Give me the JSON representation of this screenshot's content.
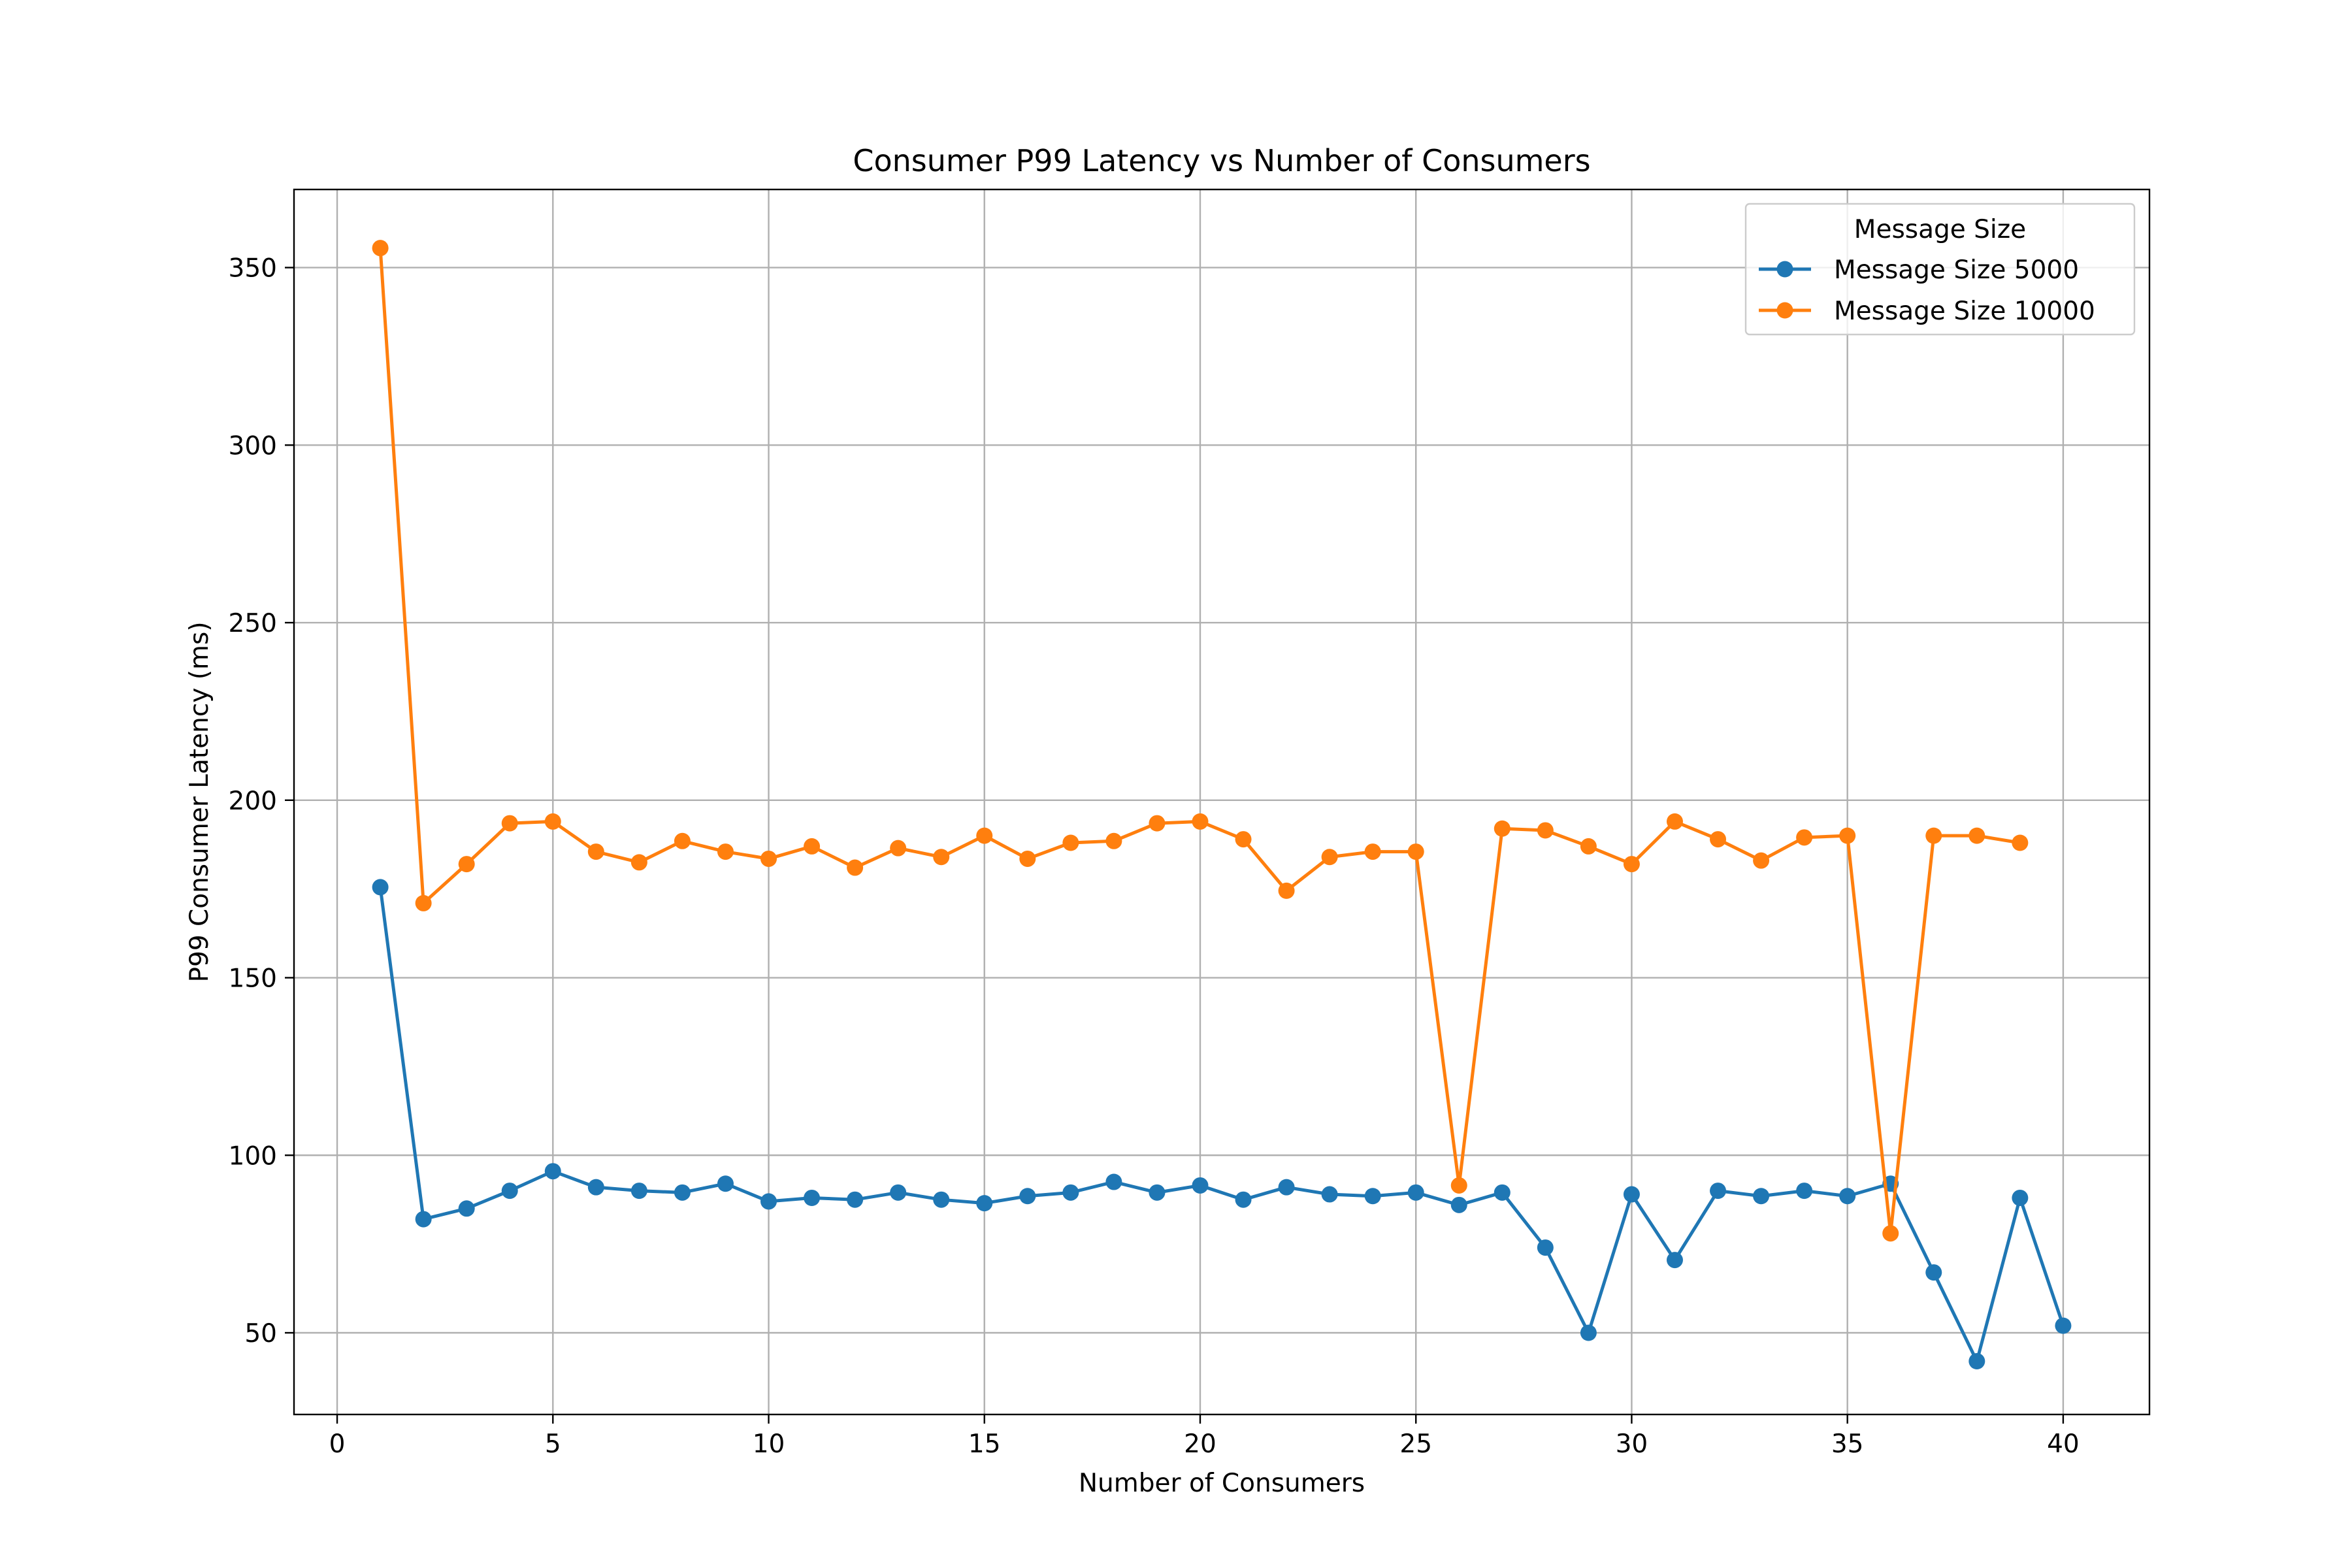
{
  "chart_data": {
    "type": "line",
    "title": "Consumer P99 Latency vs Number of Consumers",
    "xlabel": "Number of Consumers",
    "ylabel": "P99 Consumer Latency (ms)",
    "xlim": [
      -1,
      42
    ],
    "ylim": [
      27,
      372
    ],
    "xticks": [
      0,
      5,
      10,
      15,
      20,
      25,
      30,
      35,
      40
    ],
    "yticks": [
      50,
      100,
      150,
      200,
      250,
      300,
      350
    ],
    "grid": true,
    "legend": {
      "title": "Message Size",
      "placement": "top-right"
    },
    "series": [
      {
        "name": "Message Size 5000",
        "color": "#1f77b4",
        "x": [
          1,
          2,
          3,
          4,
          5,
          6,
          7,
          8,
          9,
          10,
          11,
          12,
          13,
          14,
          15,
          16,
          17,
          18,
          19,
          20,
          21,
          22,
          23,
          24,
          25,
          26,
          27,
          28,
          29,
          30,
          31,
          32,
          33,
          34,
          35,
          36,
          37,
          38,
          39,
          40
        ],
        "values": [
          175.5,
          82,
          85,
          90,
          95.5,
          91,
          90,
          89.5,
          92,
          87,
          88,
          87.5,
          89.5,
          87.5,
          86.5,
          88.5,
          89.5,
          92.5,
          89.5,
          91.5,
          87.5,
          91,
          89,
          88.5,
          89.5,
          86,
          89.5,
          74,
          50,
          89,
          70.5,
          90,
          88.5,
          90,
          88.5,
          92,
          67,
          42,
          88,
          52
        ]
      },
      {
        "name": "Message Size 10000",
        "color": "#ff7f0e",
        "x": [
          1,
          2,
          3,
          4,
          5,
          6,
          7,
          8,
          9,
          10,
          11,
          12,
          13,
          14,
          15,
          16,
          17,
          18,
          19,
          20,
          21,
          22,
          23,
          24,
          25,
          26,
          27,
          28,
          29,
          30,
          31,
          32,
          33,
          34,
          35,
          36,
          37,
          38,
          39
        ],
        "values": [
          355.5,
          171,
          182,
          193.5,
          194,
          185.5,
          182.5,
          188.5,
          185.5,
          183.5,
          187,
          181,
          186.5,
          184,
          190,
          183.5,
          188,
          188.5,
          193.5,
          194,
          189,
          174.5,
          184,
          185.5,
          185.5,
          91.5,
          192,
          191.5,
          187,
          182,
          194,
          189,
          183,
          189.5,
          190,
          78,
          190,
          190,
          188
        ]
      }
    ]
  }
}
